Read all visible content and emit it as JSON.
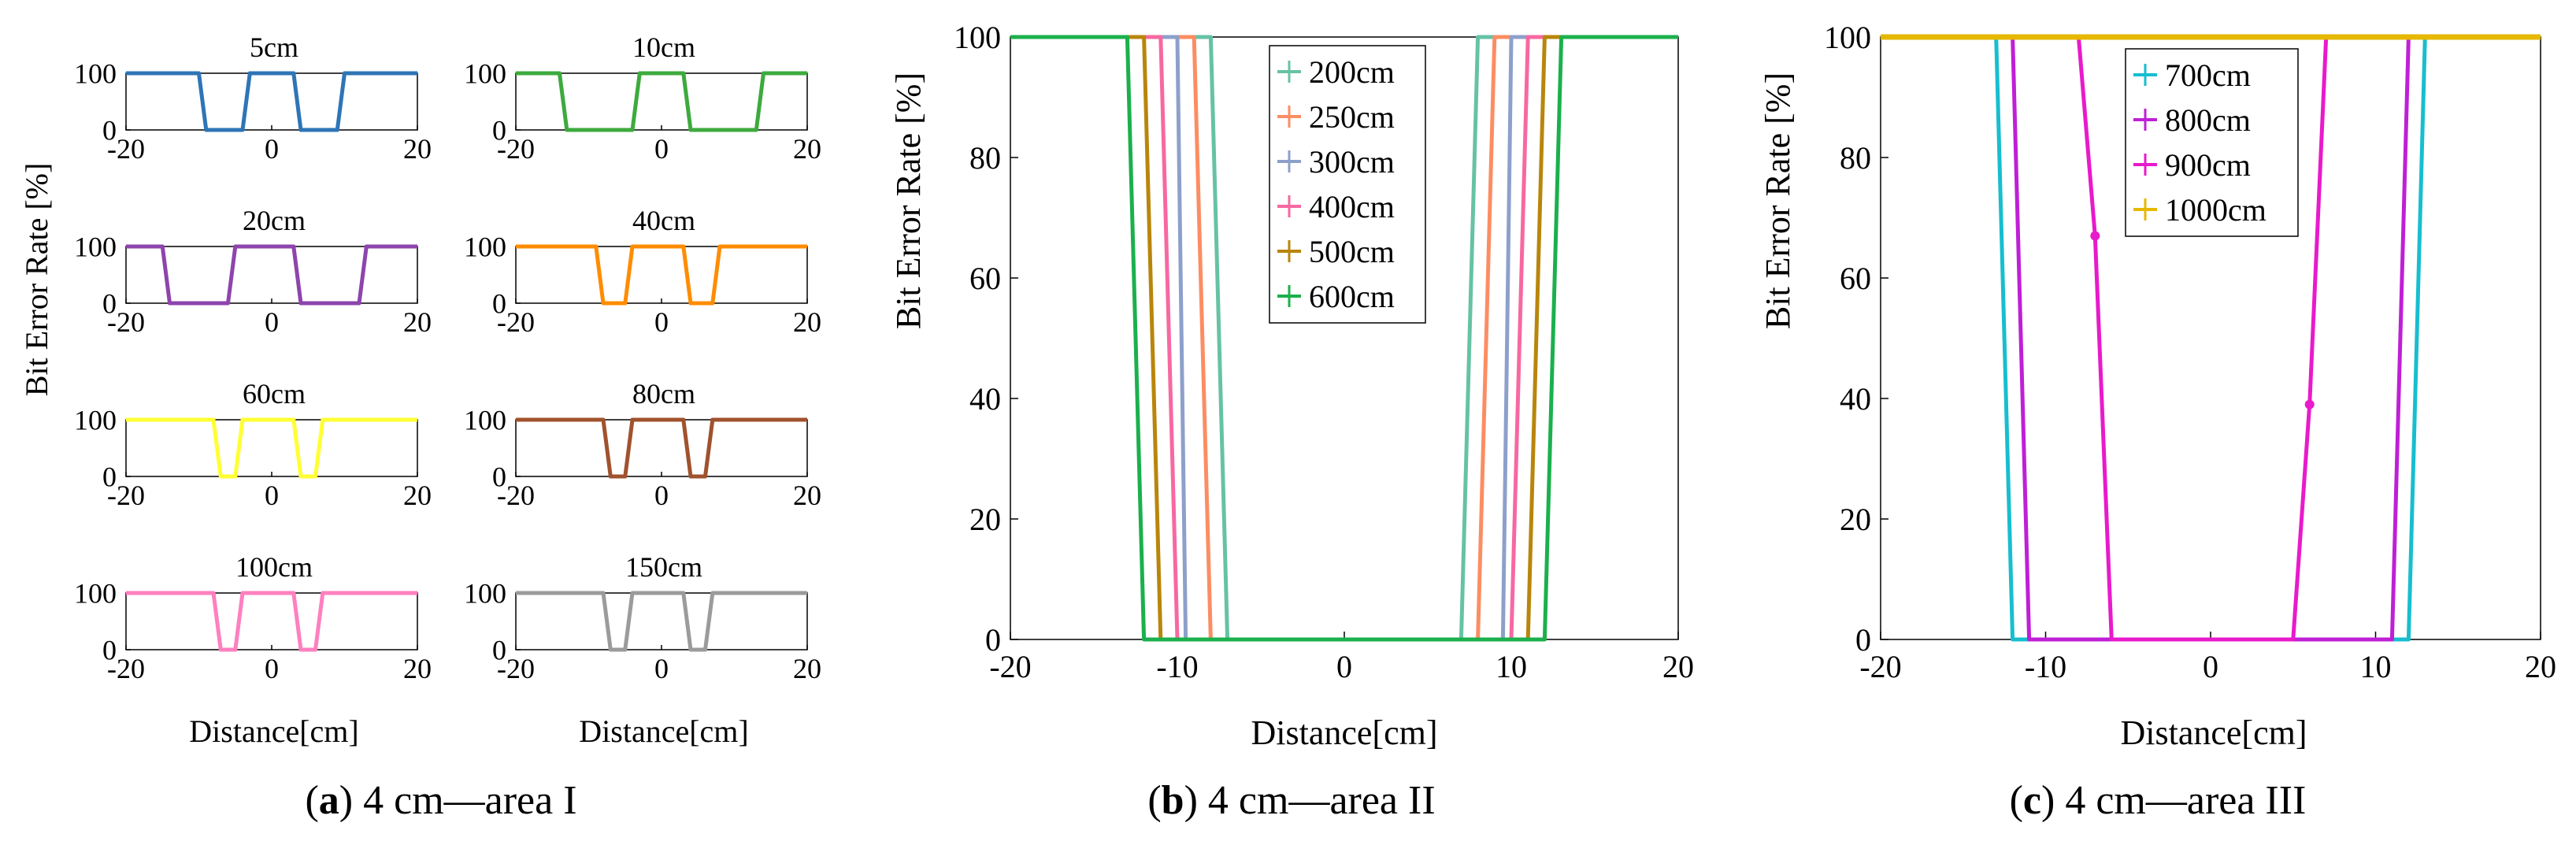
{
  "colors": {
    "axis": "#000000",
    "panel_a": [
      "#2e75b6",
      "#3daa3d",
      "#8e44ad",
      "#ff8c00",
      "#ffff33",
      "#a0522d",
      "#ff7fbf",
      "#9b9b9b"
    ],
    "panel_b": [
      "#66c2a5",
      "#fc8d62",
      "#8da0cb",
      "#f768a1",
      "#b8860b",
      "#1bb04c"
    ],
    "panel_c": [
      "#17becf",
      "#bf1fd6",
      "#e81acb",
      "#e6b800"
    ]
  },
  "chart_data": [
    {
      "id": "a",
      "type": "line",
      "caption_letter": "a",
      "caption_text": "4 cm—area I",
      "xlabel": "Distance[cm]",
      "ylabel": "Bit Error Rate [%]",
      "xlim": [
        -20,
        20
      ],
      "ylim": [
        0,
        100
      ],
      "xticks": [
        "-20",
        "0",
        "20"
      ],
      "yticks": [
        "0",
        "100"
      ],
      "subplots": [
        {
          "title": "5cm",
          "x": [
            -20,
            -10,
            -9,
            -4,
            -3,
            3,
            4,
            9,
            10,
            20
          ],
          "y": [
            100,
            100,
            0,
            0,
            100,
            100,
            0,
            0,
            100,
            100
          ]
        },
        {
          "title": "10cm",
          "x": [
            -20,
            -14,
            -13,
            -4,
            -3,
            3,
            4,
            13,
            14,
            20
          ],
          "y": [
            100,
            100,
            0,
            0,
            100,
            100,
            0,
            0,
            100,
            100
          ]
        },
        {
          "title": "20cm",
          "x": [
            -20,
            -15,
            -14,
            -6,
            -5,
            3,
            4,
            12,
            13,
            20
          ],
          "y": [
            100,
            100,
            0,
            0,
            100,
            100,
            0,
            0,
            100,
            100
          ]
        },
        {
          "title": "40cm",
          "x": [
            -20,
            -9,
            -8,
            -5,
            -4,
            3,
            4,
            7,
            8,
            20
          ],
          "y": [
            100,
            100,
            0,
            0,
            100,
            100,
            0,
            0,
            100,
            100
          ]
        },
        {
          "title": "60cm",
          "x": [
            -20,
            -8,
            -7,
            -5,
            -4,
            3,
            4,
            6,
            7,
            20
          ],
          "y": [
            100,
            100,
            0,
            0,
            100,
            100,
            0,
            0,
            100,
            100
          ]
        },
        {
          "title": "80cm",
          "x": [
            -20,
            -8,
            -7,
            -5,
            -4,
            3,
            4,
            6,
            7,
            20
          ],
          "y": [
            100,
            100,
            0,
            0,
            100,
            100,
            0,
            0,
            100,
            100
          ]
        },
        {
          "title": "100cm",
          "x": [
            -20,
            -8,
            -7,
            -5,
            -4,
            3,
            4,
            6,
            7,
            20
          ],
          "y": [
            100,
            100,
            0,
            0,
            100,
            100,
            0,
            0,
            100,
            100
          ]
        },
        {
          "title": "150cm",
          "x": [
            -20,
            -8,
            -7,
            -5,
            -4,
            3,
            4,
            6,
            7,
            20
          ],
          "y": [
            100,
            100,
            0,
            0,
            100,
            100,
            0,
            0,
            100,
            100
          ]
        }
      ]
    },
    {
      "id": "b",
      "type": "line",
      "caption_letter": "b",
      "caption_text": "4 cm—area II",
      "xlabel": "Distance[cm]",
      "ylabel": "Bit Error Rate [%]",
      "xlim": [
        -20,
        20
      ],
      "ylim": [
        0,
        100
      ],
      "xticks": [
        "-20",
        "-10",
        "0",
        "10",
        "20"
      ],
      "yticks": [
        "0",
        "20",
        "40",
        "60",
        "80",
        "100"
      ],
      "legend_position": "top-center",
      "series": [
        {
          "name": "200cm",
          "x": [
            -20,
            -8,
            -7,
            7,
            8,
            20
          ],
          "y": [
            100,
            100,
            0,
            0,
            100,
            100
          ]
        },
        {
          "name": "250cm",
          "x": [
            -20,
            -9,
            -8,
            8,
            9,
            20
          ],
          "y": [
            100,
            100,
            0,
            0,
            100,
            100
          ]
        },
        {
          "name": "300cm",
          "x": [
            -20,
            -10,
            -9.5,
            9.5,
            10,
            20
          ],
          "y": [
            100,
            100,
            0,
            0,
            100,
            100
          ]
        },
        {
          "name": "400cm",
          "x": [
            -20,
            -11,
            -10,
            10,
            11,
            20
          ],
          "y": [
            100,
            100,
            0,
            0,
            100,
            100
          ]
        },
        {
          "name": "500cm",
          "x": [
            -20,
            -12,
            -11,
            11,
            12,
            20
          ],
          "y": [
            100,
            100,
            0,
            0,
            100,
            100
          ]
        },
        {
          "name": "600cm",
          "x": [
            -20,
            -13,
            -12,
            12,
            13,
            20
          ],
          "y": [
            100,
            100,
            0,
            0,
            100,
            100
          ]
        }
      ]
    },
    {
      "id": "c",
      "type": "line",
      "caption_letter": "c",
      "caption_text": "4 cm—area III",
      "xlabel": "Distance[cm]",
      "ylabel": "Bit Error Rate [%]",
      "xlim": [
        -20,
        20
      ],
      "ylim": [
        0,
        100
      ],
      "xticks": [
        "-20",
        "-10",
        "0",
        "10",
        "20"
      ],
      "yticks": [
        "0",
        "20",
        "40",
        "60",
        "80",
        "100"
      ],
      "legend_position": "top-left",
      "series": [
        {
          "name": "700cm",
          "x": [
            -20,
            -13,
            -12,
            12,
            13,
            20
          ],
          "y": [
            100,
            100,
            0,
            0,
            100,
            100
          ]
        },
        {
          "name": "800cm",
          "x": [
            -20,
            -12,
            -11,
            11,
            12,
            20
          ],
          "y": [
            100,
            100,
            0,
            0,
            100,
            100
          ]
        },
        {
          "name": "900cm",
          "x": [
            -20,
            -8,
            -7,
            -6,
            5,
            6,
            7,
            20
          ],
          "y": [
            100,
            100,
            67,
            0,
            0,
            39,
            100,
            100
          ]
        },
        {
          "name": "1000cm",
          "x": [
            -20,
            20
          ],
          "y": [
            100,
            100
          ]
        }
      ]
    }
  ]
}
